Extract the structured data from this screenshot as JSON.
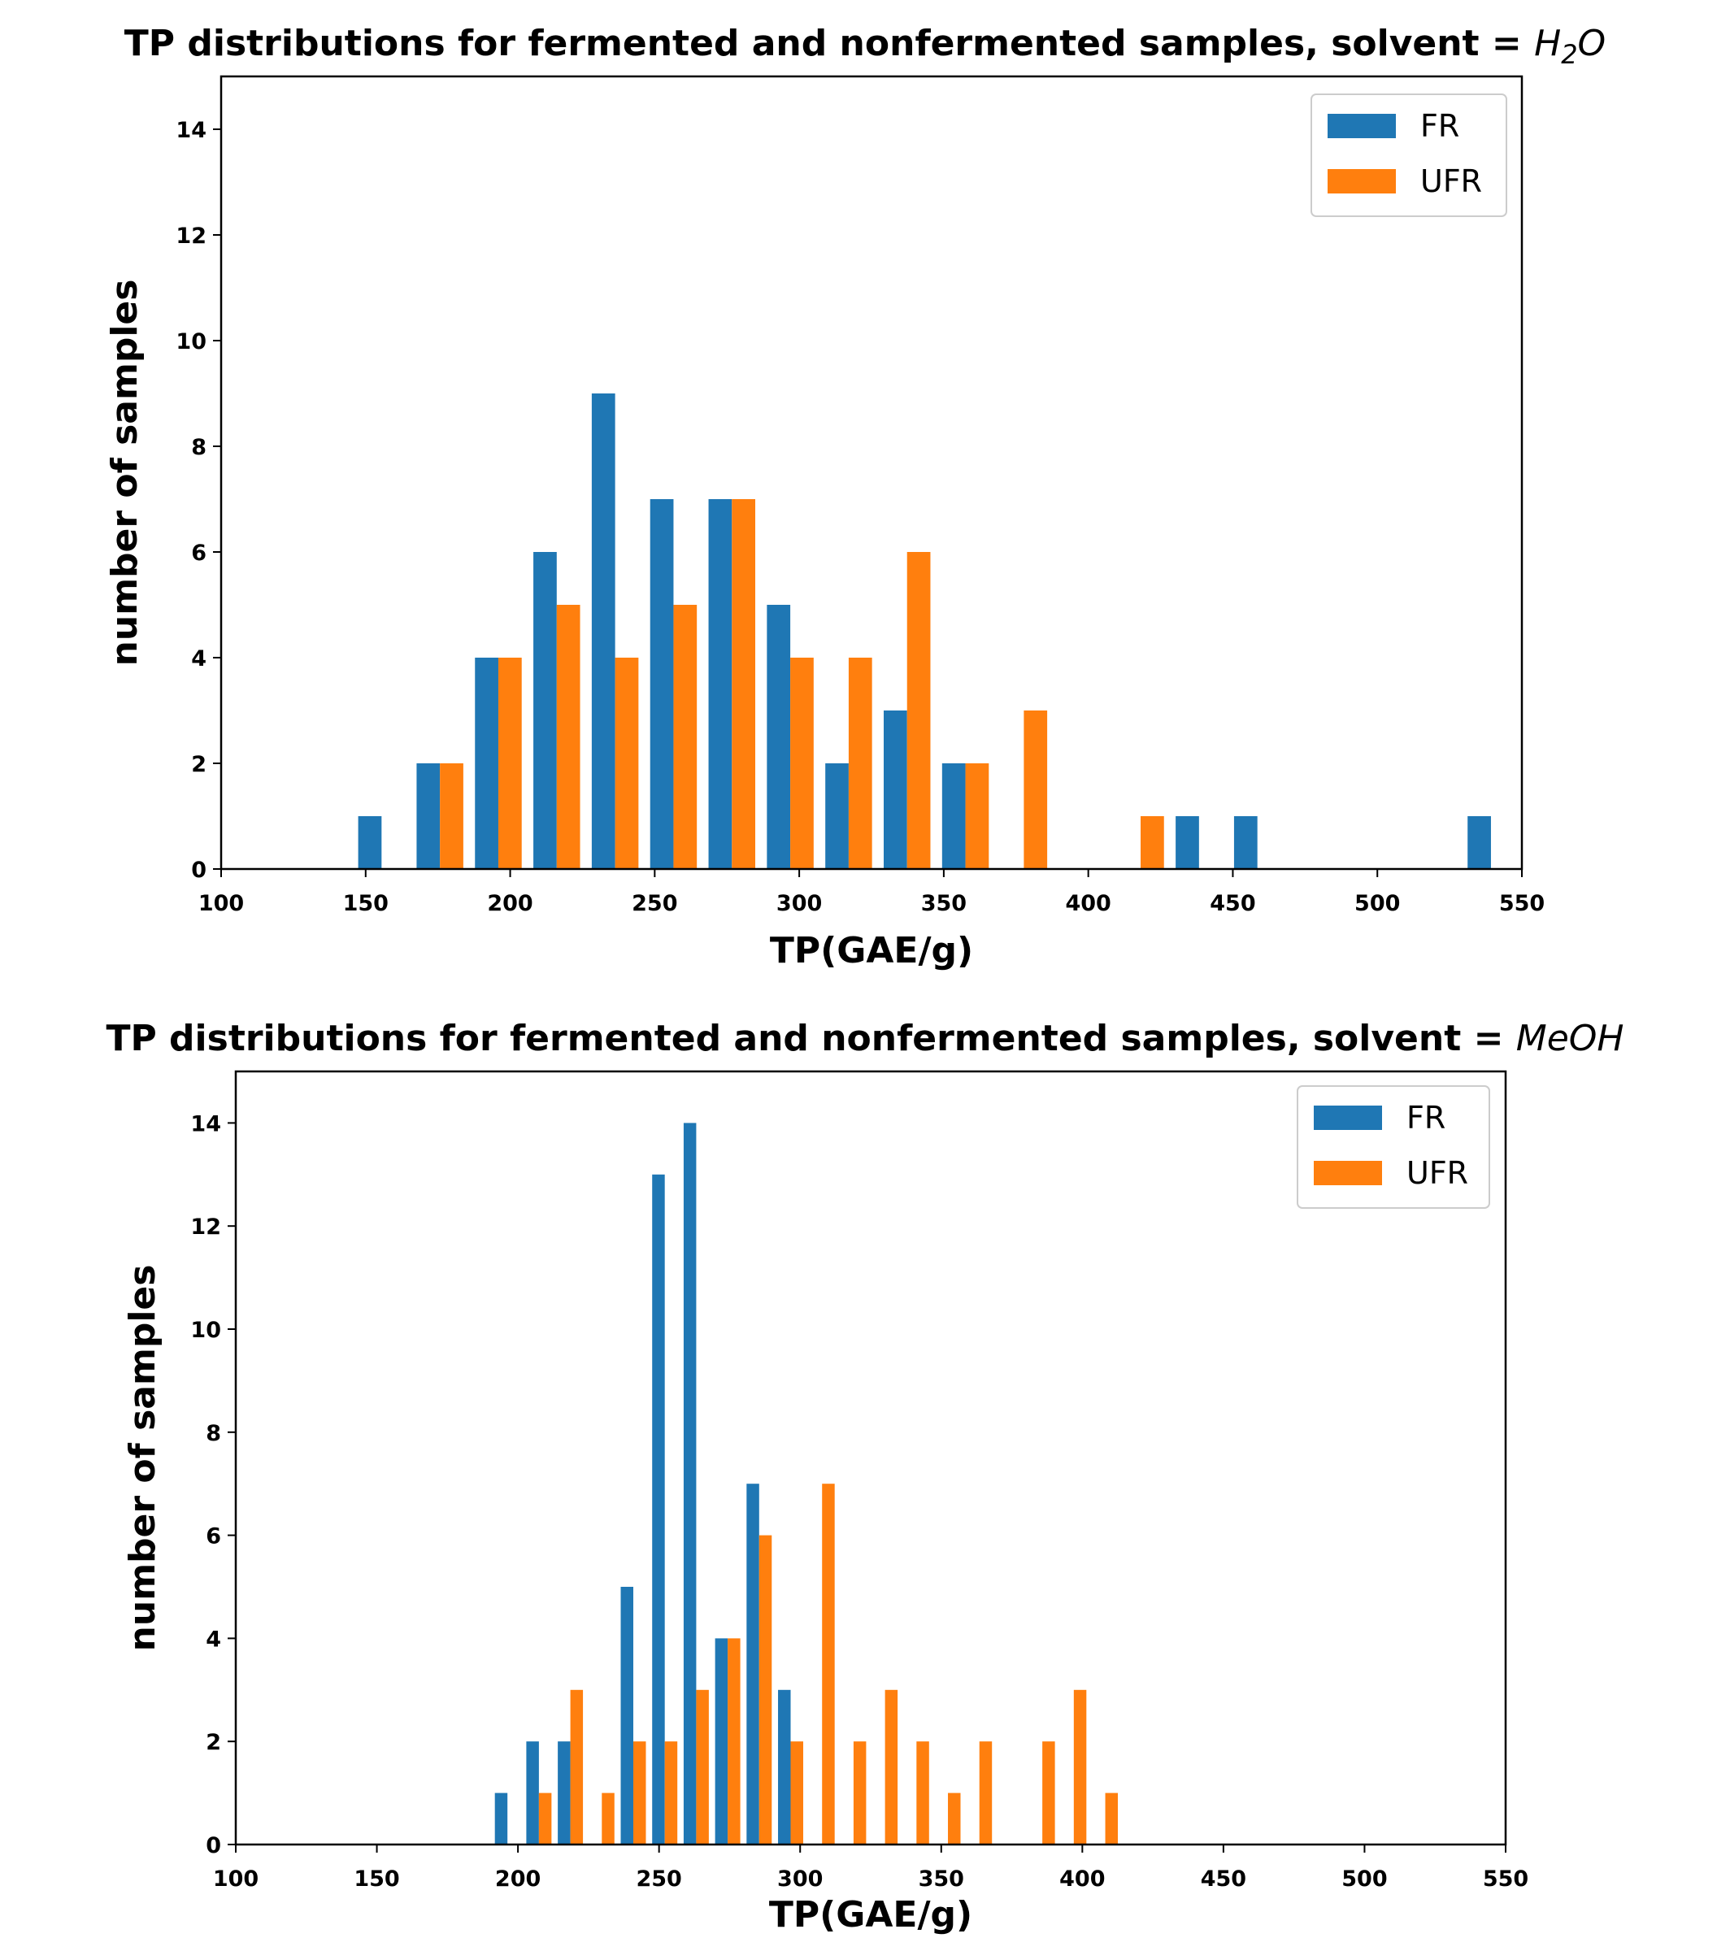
{
  "colors": {
    "FR": "#1f77b4",
    "UFR": "#ff7f0e"
  },
  "chart_data": [
    {
      "type": "bar",
      "title_prefix": "TP distributions for fermented and nonfermented samples, solvent = ",
      "title_math": "H",
      "title_math_sub": "2",
      "title_math_suffix": "O",
      "xlabel": "TP(GAE/g)",
      "ylabel": "number of samples",
      "xlim": [
        100,
        550
      ],
      "ylim": [
        0,
        15
      ],
      "xticks": [
        100,
        150,
        200,
        250,
        300,
        350,
        400,
        450,
        500,
        550
      ],
      "yticks": [
        0,
        2,
        4,
        6,
        8,
        10,
        12,
        14
      ],
      "bin_edges": [
        145.4,
        165.6,
        185.8,
        206.0,
        226.2,
        246.4,
        266.6,
        286.8,
        307.0,
        327.2,
        347.4,
        367.6,
        387.8,
        408.0,
        428.2,
        448.4,
        468.6,
        488.8,
        509.0,
        529.2,
        549.4
      ],
      "legend": [
        "FR",
        "UFR"
      ],
      "legend_position": "upper right",
      "series": [
        {
          "name": "FR",
          "values": [
            1,
            2,
            4,
            6,
            9,
            7,
            7,
            5,
            2,
            3,
            2,
            0,
            0,
            0,
            1,
            1,
            0,
            0,
            0,
            1
          ]
        },
        {
          "name": "UFR",
          "values": [
            0,
            2,
            4,
            5,
            4,
            5,
            7,
            4,
            4,
            6,
            2,
            3,
            0,
            1,
            0,
            0,
            0,
            0,
            0,
            0
          ]
        }
      ]
    },
    {
      "type": "bar",
      "title_prefix": "TP distributions for fermented and nonfermented samples, solvent = ",
      "title_math": "MeOH",
      "title_math_sub": "",
      "title_math_suffix": "",
      "xlabel": "TP(GAE/g)",
      "ylabel": "number of samples",
      "xlim": [
        100,
        550
      ],
      "ylim": [
        0,
        15
      ],
      "xticks": [
        100,
        150,
        200,
        250,
        300,
        350,
        400,
        450,
        500,
        550
      ],
      "yticks": [
        0,
        2,
        4,
        6,
        8,
        10,
        12,
        14
      ],
      "bin_edges": [
        190.7,
        201.85,
        213.0,
        224.15,
        235.3,
        246.45,
        257.6,
        268.75,
        279.9,
        291.05,
        302.2,
        313.35,
        324.5,
        335.65,
        346.8,
        357.95,
        369.1,
        380.25,
        391.4,
        402.55,
        413.7
      ],
      "legend": [
        "FR",
        "UFR"
      ],
      "legend_position": "upper right",
      "series": [
        {
          "name": "FR",
          "values": [
            1,
            2,
            2,
            0,
            5,
            13,
            14,
            4,
            7,
            3,
            0,
            0,
            0,
            0,
            0,
            0,
            0,
            0,
            0,
            0
          ]
        },
        {
          "name": "UFR",
          "values": [
            0,
            1,
            3,
            1,
            2,
            2,
            3,
            4,
            6,
            2,
            7,
            2,
            3,
            2,
            1,
            2,
            0,
            2,
            3,
            1
          ]
        }
      ]
    }
  ]
}
